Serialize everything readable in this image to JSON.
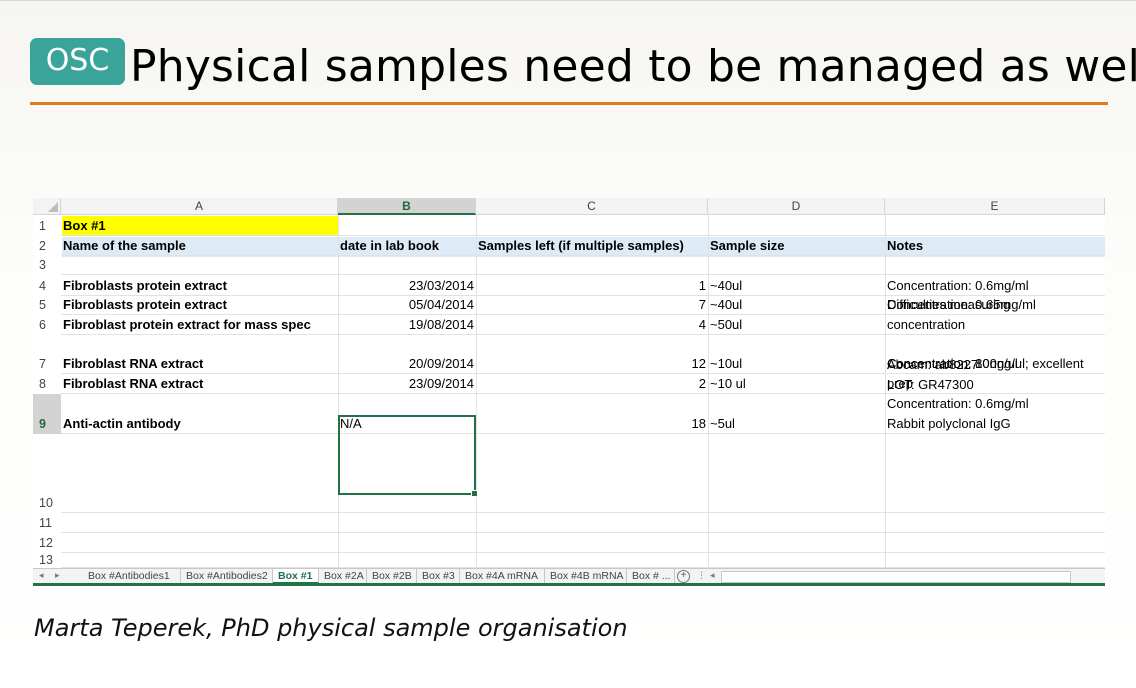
{
  "slide": {
    "badge": "OSC",
    "title": "Physical samples need to be managed as well",
    "caption": "Marta Teperek, PhD physical sample organisation",
    "accent_color": "#e07a1f",
    "badge_color": "#3aa39a"
  },
  "spreadsheet": {
    "columns": [
      "A",
      "B",
      "C",
      "D",
      "E"
    ],
    "selected_column": "B",
    "selected_row": "9",
    "rows": [
      {
        "num": "1",
        "a": "Box #1",
        "b": "",
        "c": "",
        "d": "",
        "e": []
      },
      {
        "num": "2",
        "a": "Name of the sample",
        "b": "date in lab book",
        "c": "Samples left (if multiple samples)",
        "d": "Sample size",
        "e": [
          "Notes"
        ]
      },
      {
        "num": "3",
        "a": "",
        "b": "",
        "c": "",
        "d": "",
        "e": []
      },
      {
        "num": "4",
        "a": "Fibroblasts protein extract",
        "b": "23/03/2014",
        "c": "1",
        "d": "~40ul",
        "e": [
          "Concentration: 0.6mg/ml"
        ]
      },
      {
        "num": "5",
        "a": "Fibroblasts protein extract",
        "b": "05/04/2014",
        "c": "7",
        "d": "~40ul",
        "e": [
          "Concentration: 0.65mg/ml"
        ]
      },
      {
        "num": "6",
        "a": "Fibroblast protein extract for mass spec",
        "b": "19/08/2014",
        "c": "4",
        "d": "~50ul",
        "e": [
          "Difficulties measuring",
          "concentration"
        ]
      },
      {
        "num": "7",
        "a": "Fibroblast RNA extract",
        "b": "20/09/2014",
        "c": "12",
        "d": "~10ul",
        "e": [
          "Concentration: 80ng/ul"
        ]
      },
      {
        "num": "8",
        "a": "Fibroblast RNA extract",
        "b": "23/09/2014",
        "c": "2",
        "d": "~10 ul",
        "e": [
          "Concentration: 100ng/ul; excellent",
          "prep"
        ]
      },
      {
        "num": "9",
        "a": "Anti-actin antibody",
        "b": "N/A",
        "c": "18",
        "d": "~5ul",
        "e": [
          "Abcam: ab8227",
          "LOT: GR47300",
          "Concentration: 0.6mg/ml",
          "Rabbit polyclonal IgG"
        ]
      },
      {
        "num": "10",
        "a": "",
        "b": "",
        "c": "",
        "d": "",
        "e": []
      },
      {
        "num": "11",
        "a": "",
        "b": "",
        "c": "",
        "d": "",
        "e": []
      },
      {
        "num": "12",
        "a": "",
        "b": "",
        "c": "",
        "d": "",
        "e": []
      },
      {
        "num": "13",
        "a": "",
        "b": "",
        "c": "",
        "d": "",
        "e": []
      }
    ],
    "sheet_tabs": [
      "Box #Antibodies1",
      "Box #Antibodies2",
      "Box #1",
      "Box #2A",
      "Box #2B",
      "Box #3",
      "Box #4A mRNA",
      "Box #4B mRNA",
      "Box # ..."
    ],
    "active_tab": "Box #1"
  }
}
